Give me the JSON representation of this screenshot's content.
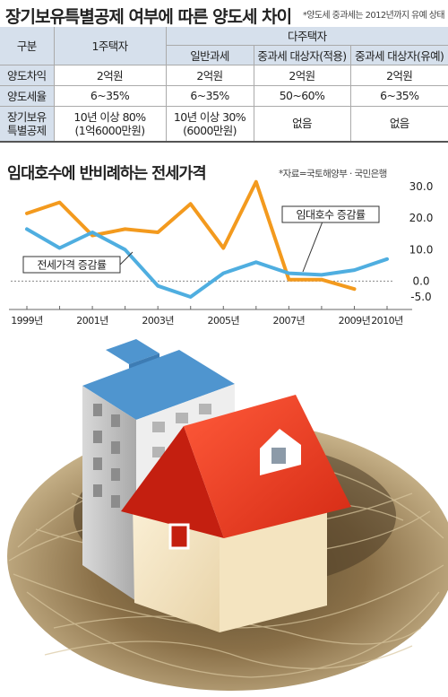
{
  "header": {
    "title": "장기보유특별공제 여부에 따른 양도세 차이",
    "note": "*양도세 중과세는 2012년까지 유예 상태"
  },
  "table": {
    "corner": "구분",
    "single_owner": "1주택자",
    "multi_owner": "다주택자",
    "sub_headers": [
      "일반과세",
      "중과세 대상자(적용)",
      "중과세 대상자(유예)"
    ],
    "rows": [
      {
        "label": "양도차익",
        "cells": [
          "2억원",
          "2억원",
          "2억원",
          "2억원"
        ]
      },
      {
        "label": "양도세율",
        "cells": [
          "6~35%",
          "6~35%",
          "50~60%",
          "6~35%"
        ]
      },
      {
        "label": [
          "장기보유",
          "특별공제"
        ],
        "cells": [
          [
            "10년 이상 80%",
            "(1억6000만원)"
          ],
          [
            "10년 이상 30%",
            "(6000만원)"
          ],
          [
            "없음"
          ],
          [
            "없음"
          ]
        ]
      }
    ]
  },
  "chart_data": {
    "type": "line",
    "title": "임대호수에 반비례하는 전세가격",
    "source": "*자료=국토해양부 · 국민은행",
    "x": [
      1999,
      2000,
      2001,
      2002,
      2003,
      2004,
      2005,
      2006,
      2007,
      2008,
      2009,
      2010
    ],
    "x_tick_labels": [
      "1999년",
      "2001년",
      "2003년",
      "2005년",
      "2007년",
      "2009년",
      "2010년"
    ],
    "x_tick_values": [
      1999,
      2001,
      2003,
      2005,
      2007,
      2009,
      2010
    ],
    "y_ticks": [
      30.0,
      20.0,
      10.0,
      0.0,
      -5.0
    ],
    "y_tick_labels": [
      "30.0",
      "20.0",
      "10.0",
      "0.0",
      "-5.0"
    ],
    "ylim": [
      -5.0,
      30.0
    ],
    "series": [
      {
        "name": "임대호수 증감률",
        "color": "#f39a1e",
        "values": [
          21.5,
          25.0,
          14.5,
          16.5,
          15.5,
          24.5,
          10.5,
          31.5,
          0.5,
          0.5,
          -2.5,
          null
        ]
      },
      {
        "name": "전세가격 증감률",
        "color": "#4faee0",
        "values": [
          16.5,
          10.5,
          15.5,
          10.0,
          -1.5,
          -5.0,
          2.5,
          6.0,
          2.5,
          2.0,
          3.5,
          7.0
        ]
      }
    ]
  }
}
